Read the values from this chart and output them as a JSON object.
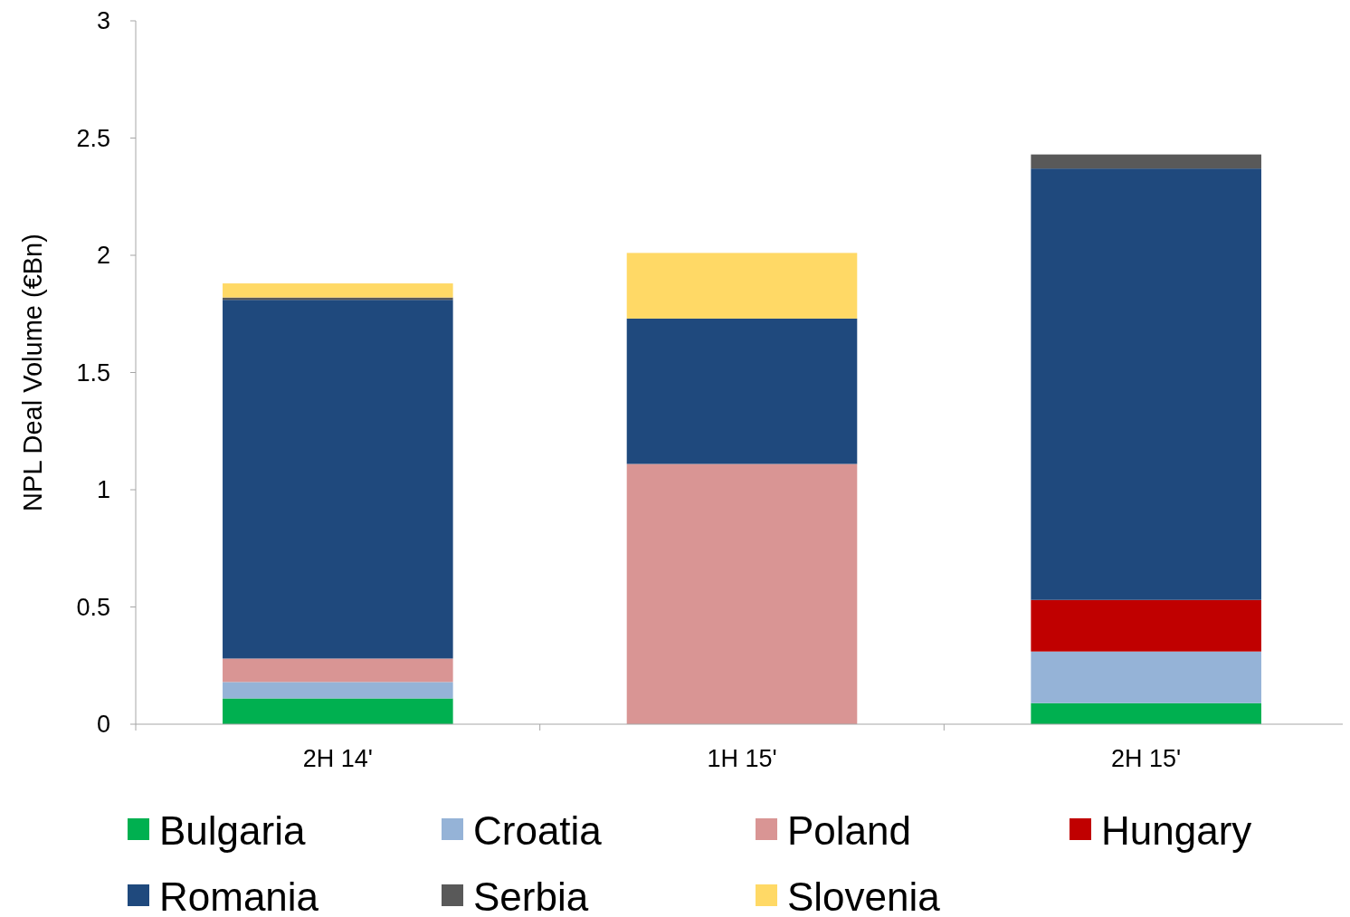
{
  "chart_data": {
    "type": "bar",
    "stacked": true,
    "ylabel": "NPL Deal Volume (€Bn)",
    "categories": [
      "2H 14'",
      "1H 15'",
      "2H 15'"
    ],
    "ylim": [
      0,
      3
    ],
    "yticks": [
      0,
      {
        "value": 0.5,
        "label": "0.5"
      },
      1,
      {
        "value": 1.5,
        "label": "1.5"
      },
      2,
      {
        "value": 2.5,
        "label": "2.5"
      },
      3
    ],
    "grid": false,
    "legend": "bottom",
    "series": [
      {
        "name": "Bulgaria",
        "color": "#00b050",
        "values": [
          0.11,
          null,
          0.09
        ]
      },
      {
        "name": "Croatia",
        "color": "#95b3d7",
        "values": [
          0.07,
          null,
          0.22
        ]
      },
      {
        "name": "Poland",
        "color": "#d99594",
        "values": [
          0.1,
          1.11,
          null
        ]
      },
      {
        "name": "Hungary",
        "color": "#c00000",
        "values": [
          null,
          null,
          0.22
        ]
      },
      {
        "name": "Romania",
        "color": "#1f497d",
        "values": [
          1.53,
          0.62,
          1.84
        ]
      },
      {
        "name": "Serbia",
        "color": "#595959",
        "values": [
          0.01,
          null,
          0.06
        ]
      },
      {
        "name": "Slovenia",
        "color": "#ffd966",
        "values": [
          0.06,
          0.28,
          null
        ]
      }
    ]
  }
}
